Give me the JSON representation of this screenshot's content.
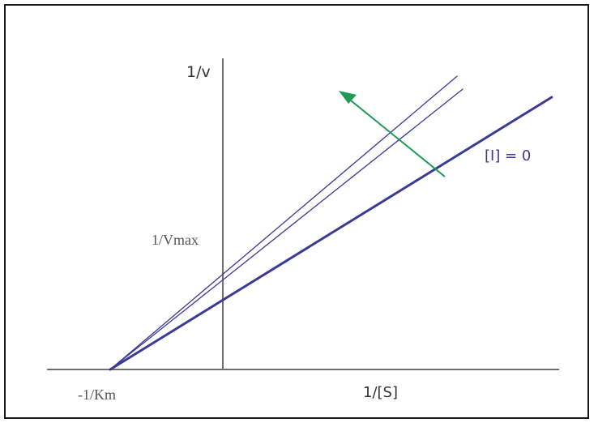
{
  "chart_data": {
    "type": "line",
    "title": "",
    "xlabel": "1/[S]",
    "ylabel": "1/v",
    "xlim": [
      -1.0,
      2.42
    ],
    "ylim": [
      0,
      3.62
    ],
    "grid": false,
    "series": [
      {
        "name": "",
        "x": [
          -1.0,
          2.08
        ],
        "y": [
          0,
          3.62
        ],
        "stroke_width": 1.3
      },
      {
        "name": "",
        "x": [
          -1.0,
          2.13
        ],
        "y": [
          0,
          3.46
        ],
        "stroke_width": 1.3
      },
      {
        "name": "[I] = 0",
        "x": [
          -1.0,
          2.92
        ],
        "y": [
          0,
          3.36
        ],
        "stroke_width": 3
      }
    ],
    "annotations": {
      "inhibitor_label": "[I] = 0",
      "y_intercept_label": "1/Vmax",
      "x_intercept_label": "-1/Km",
      "arrow_direction": "increasing [I]"
    }
  },
  "colors": {
    "line": "#3b3a96",
    "axis": "#6f6f6f",
    "arrow": "#1e9a57",
    "axis_text": "#333333",
    "serif_text": "#555555",
    "label_text": "#3b3a96"
  }
}
